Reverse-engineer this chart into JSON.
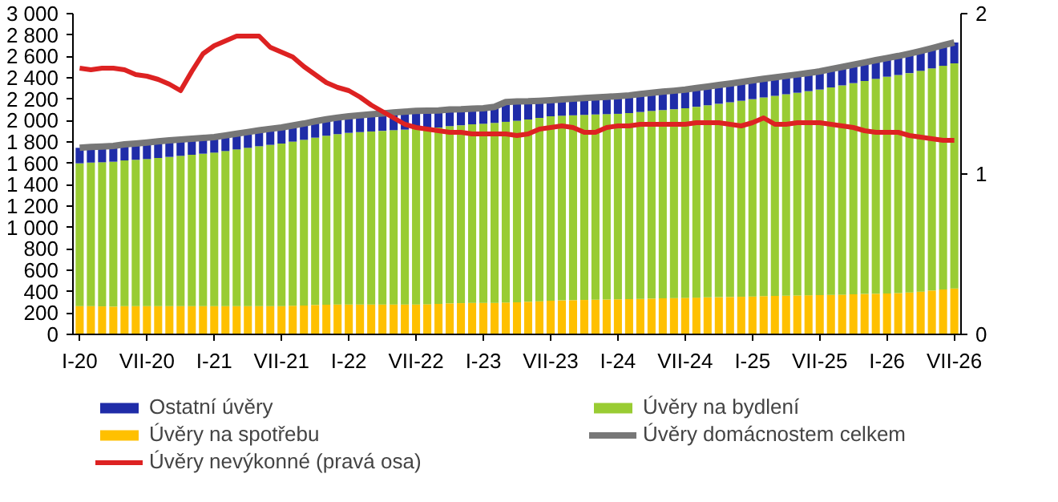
{
  "chart_data": {
    "type": "bar",
    "stacked": true,
    "legend": "bottom",
    "categories": [
      "I-20",
      null,
      null,
      null,
      null,
      null,
      "VII-20",
      null,
      null,
      null,
      null,
      null,
      "I-21",
      null,
      null,
      null,
      null,
      null,
      "VII-21",
      null,
      null,
      null,
      null,
      null,
      "I-22",
      null,
      null,
      null,
      null,
      null,
      "VII-22",
      null,
      null,
      null,
      null,
      null,
      "I-23",
      null,
      null,
      null,
      null,
      null,
      "VII-23",
      null,
      null,
      null,
      null,
      null,
      "I-24",
      null,
      null,
      null,
      null,
      null,
      "VII-24",
      null,
      null,
      null,
      null,
      null,
      "I-25",
      null,
      null,
      null,
      null,
      null,
      "VII-25",
      null,
      null,
      null,
      null,
      null,
      "I-26",
      null,
      null,
      null,
      null,
      null,
      "VII-26"
    ],
    "ylim": [
      0,
      3000
    ],
    "yticks": [
      0,
      200,
      400,
      600,
      800,
      {
        "value": 1000,
        "label": "1 000"
      },
      {
        "value": 1200,
        "label": "1 200"
      },
      {
        "value": 1400,
        "label": "1 400"
      },
      {
        "value": 1600,
        "label": "1 600"
      },
      {
        "value": 1800,
        "label": "1 800"
      },
      {
        "value": 2000,
        "label": "2 000"
      },
      {
        "value": 2200,
        "label": "2 200"
      },
      {
        "value": 2400,
        "label": "2 400"
      },
      {
        "value": 2600,
        "label": "2 600"
      },
      {
        "value": 2800,
        "label": "2 800"
      },
      {
        "value": 3000,
        "label": "3 000"
      }
    ],
    "y2lim": [
      0,
      2
    ],
    "y2ticks": [
      0,
      1,
      2
    ],
    "series": [
      {
        "name": "Úvěry na spotřebu",
        "color": "#ffc000",
        "values": [
          265,
          265,
          262,
          260,
          265,
          265,
          265,
          265,
          265,
          265,
          265,
          265,
          265,
          265,
          265,
          265,
          265,
          265,
          265,
          268,
          270,
          275,
          278,
          280,
          280,
          280,
          280,
          280,
          280,
          280,
          280,
          282,
          285,
          290,
          292,
          295,
          295,
          295,
          298,
          300,
          305,
          310,
          315,
          318,
          320,
          322,
          324,
          326,
          328,
          330,
          332,
          335,
          338,
          340,
          342,
          344,
          346,
          348,
          350,
          352,
          355,
          358,
          360,
          362,
          364,
          366,
          368,
          370,
          372,
          375,
          378,
          380,
          383,
          386,
          392,
          400,
          410,
          420,
          430
        ]
      },
      {
        "name": "Úvěry na bydlení",
        "color": "#99cc33",
        "values": [
          1335,
          1342,
          1348,
          1355,
          1362,
          1368,
          1375,
          1385,
          1395,
          1405,
          1415,
          1425,
          1435,
          1450,
          1465,
          1480,
          1495,
          1508,
          1520,
          1535,
          1550,
          1565,
          1580,
          1593,
          1605,
          1612,
          1618,
          1624,
          1630,
          1635,
          1640,
          1645,
          1650,
          1658,
          1664,
          1670,
          1675,
          1683,
          1690,
          1698,
          1705,
          1715,
          1725,
          1727,
          1729,
          1731,
          1733,
          1734,
          1735,
          1740,
          1748,
          1755,
          1760,
          1766,
          1773,
          1785,
          1797,
          1809,
          1821,
          1833,
          1845,
          1858,
          1871,
          1884,
          1896,
          1909,
          1922,
          1940,
          1957,
          1975,
          1992,
          2010,
          2027,
          2040,
          2052,
          2065,
          2078,
          2092,
          2105
        ]
      },
      {
        "name": "Ostatní úvěry",
        "color": "#1f2ca8",
        "values": [
          145,
          146,
          147,
          148,
          150,
          152,
          155,
          155,
          155,
          153,
          150,
          148,
          145,
          146,
          147,
          148,
          149,
          150,
          150,
          151,
          152,
          153,
          154,
          155,
          155,
          157,
          160,
          163,
          166,
          168,
          170,
          165,
          160,
          155,
          150,
          147,
          145,
          150,
          185,
          180,
          170,
          160,
          150,
          152,
          155,
          158,
          160,
          162,
          165,
          166,
          168,
          170,
          172,
          173,
          175,
          175,
          175,
          175,
          175,
          175,
          175,
          174,
          173,
          172,
          171,
          170,
          170,
          171,
          172,
          173,
          174,
          175,
          175,
          178,
          182,
          185,
          188,
          192,
          195
        ]
      },
      {
        "name": "Úvěry domácnostem celkem",
        "type": "line",
        "color": "#777777",
        "values": [
          1745,
          1753,
          1757,
          1763,
          1777,
          1785,
          1795,
          1805,
          1815,
          1823,
          1830,
          1838,
          1845,
          1861,
          1877,
          1893,
          1909,
          1923,
          1935,
          1954,
          1972,
          1993,
          2012,
          2028,
          2040,
          2049,
          2058,
          2067,
          2076,
          2083,
          2090,
          2092,
          2095,
          2103,
          2106,
          2112,
          2115,
          2128,
          2173,
          2178,
          2180,
          2185,
          2190,
          2197,
          2204,
          2211,
          2217,
          2222,
          2228,
          2236,
          2248,
          2260,
          2270,
          2279,
          2290,
          2304,
          2318,
          2332,
          2346,
          2360,
          2375,
          2390,
          2404,
          2418,
          2431,
          2445,
          2460,
          2481,
          2501,
          2523,
          2544,
          2565,
          2585,
          2604,
          2626,
          2650,
          2676,
          2704,
          2730
        ]
      },
      {
        "name": "Úvěry nevýkonné (pravá osa)",
        "type": "line",
        "axis": "y2",
        "color": "#dd2222",
        "values": [
          1.66,
          1.65,
          1.66,
          1.66,
          1.65,
          1.62,
          1.61,
          1.59,
          1.56,
          1.52,
          1.64,
          1.75,
          1.8,
          1.83,
          1.86,
          1.86,
          1.86,
          1.79,
          1.76,
          1.73,
          1.67,
          1.62,
          1.57,
          1.54,
          1.52,
          1.48,
          1.43,
          1.39,
          1.35,
          1.31,
          1.29,
          1.28,
          1.27,
          1.26,
          1.26,
          1.25,
          1.25,
          1.25,
          1.25,
          1.24,
          1.25,
          1.28,
          1.29,
          1.3,
          1.29,
          1.26,
          1.26,
          1.29,
          1.3,
          1.3,
          1.31,
          1.31,
          1.31,
          1.31,
          1.31,
          1.32,
          1.32,
          1.32,
          1.31,
          1.3,
          1.32,
          1.35,
          1.31,
          1.31,
          1.32,
          1.32,
          1.32,
          1.31,
          1.3,
          1.29,
          1.27,
          1.26,
          1.26,
          1.26,
          1.24,
          1.23,
          1.22,
          1.21,
          1.21
        ]
      }
    ]
  }
}
